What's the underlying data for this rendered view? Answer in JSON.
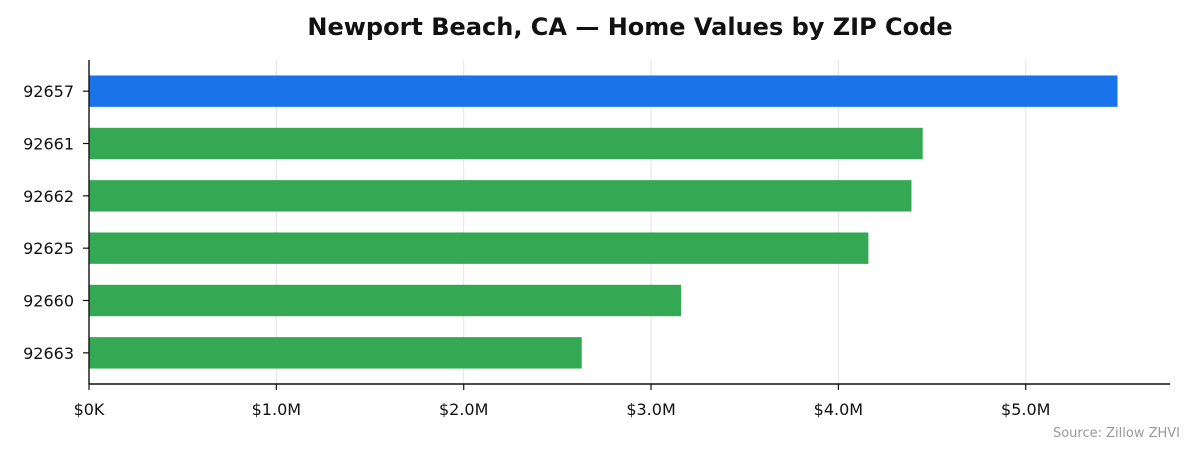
{
  "chart_data": {
    "type": "bar",
    "orientation": "horizontal",
    "title": "Newport Beach, CA — Home Values by ZIP Code",
    "xlabel": "",
    "ylabel": "",
    "categories": [
      "92657",
      "92661",
      "92662",
      "92625",
      "92660",
      "92663"
    ],
    "values": [
      5490000,
      4450000,
      4390000,
      4160000,
      3160000,
      2630000
    ],
    "highlight_category": "92657",
    "xlim": [
      0,
      5770000
    ],
    "xticks": [
      0,
      1000000,
      2000000,
      3000000,
      4000000,
      5000000
    ],
    "xtick_labels": [
      "$0K",
      "$1.0M",
      "$2.0M",
      "$3.0M",
      "$4.0M",
      "$5.0M"
    ],
    "grid": "vertical",
    "legend": "none"
  },
  "colors": {
    "highlight": "#1a73e8",
    "default": "#34a853"
  },
  "source_note": "Source: Zillow ZHVI"
}
